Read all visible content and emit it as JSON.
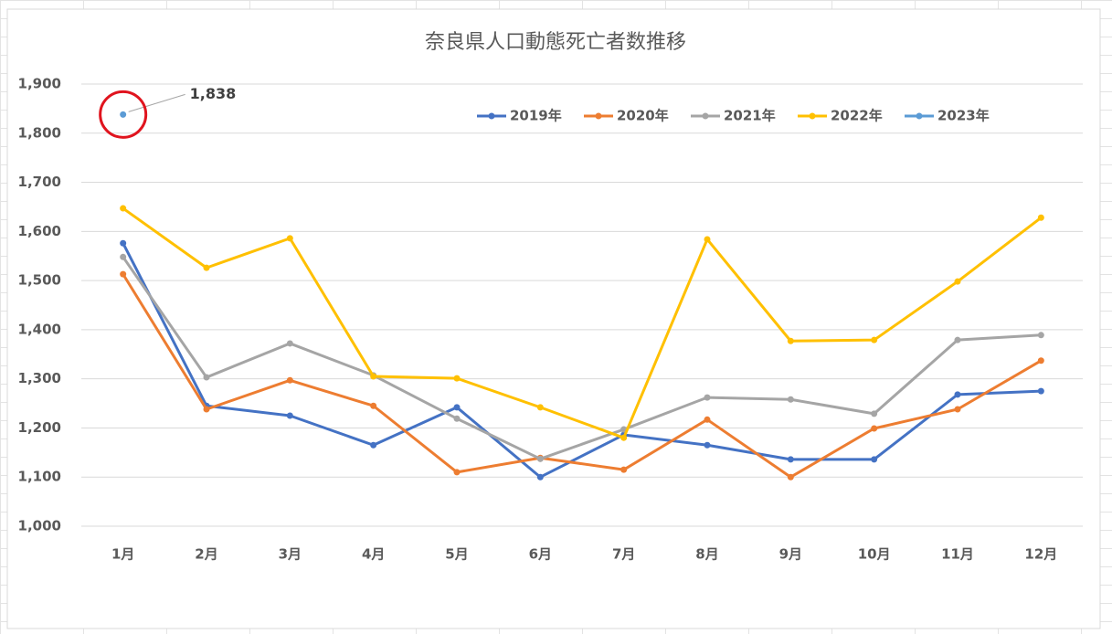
{
  "chart_data": {
    "type": "line",
    "title": "奈良県人口動態死亡者数推移",
    "categories": [
      "1月",
      "2月",
      "3月",
      "4月",
      "5月",
      "6月",
      "7月",
      "8月",
      "9月",
      "10月",
      "11月",
      "12月"
    ],
    "series": [
      {
        "name": "2019年",
        "color": "#4472c4",
        "values": [
          1576,
          1245,
          1225,
          1165,
          1242,
          1100,
          1186,
          1165,
          1136,
          1136,
          1268,
          1275
        ]
      },
      {
        "name": "2020年",
        "color": "#ed7d31",
        "values": [
          1513,
          1238,
          1297,
          1245,
          1110,
          1139,
          1115,
          1217,
          1100,
          1199,
          1238,
          1337
        ]
      },
      {
        "name": "2021年",
        "color": "#a5a5a5",
        "values": [
          1548,
          1303,
          1372,
          1307,
          1219,
          1137,
          1197,
          1262,
          1258,
          1229,
          1379,
          1389
        ]
      },
      {
        "name": "2022年",
        "color": "#ffc000",
        "values": [
          1647,
          1526,
          1586,
          1305,
          1301,
          1242,
          1180,
          1584,
          1377,
          1379,
          1498,
          1628
        ]
      },
      {
        "name": "2023年",
        "color": "#5b9bd5",
        "values": [
          1838,
          null,
          null,
          null,
          null,
          null,
          null,
          null,
          null,
          null,
          null,
          null
        ],
        "value_labels": [
          "1,838",
          null,
          null,
          null,
          null,
          null,
          null,
          null,
          null,
          null,
          null,
          null
        ]
      }
    ],
    "ylim": [
      1000,
      1900
    ],
    "yticks": [
      {
        "value": 1000,
        "label": "1,000"
      },
      {
        "value": 1100,
        "label": "1,100"
      },
      {
        "value": 1200,
        "label": "1,200"
      },
      {
        "value": 1300,
        "label": "1,300"
      },
      {
        "value": 1400,
        "label": "1,400"
      },
      {
        "value": 1500,
        "label": "1,500"
      },
      {
        "value": 1600,
        "label": "1,600"
      },
      {
        "value": 1700,
        "label": "1,700"
      },
      {
        "value": 1800,
        "label": "1,800"
      },
      {
        "value": 1900,
        "label": "1,900"
      }
    ],
    "grid": true,
    "legend": "top"
  }
}
